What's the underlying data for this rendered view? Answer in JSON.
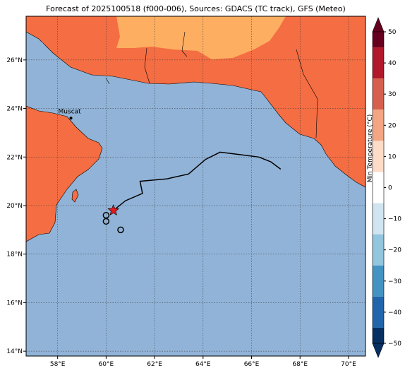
{
  "title": "Forecast of 2025100518 (f000-006), Sources: GDACS (TC track), GFS (Meteo)",
  "map": {
    "lon_range": [
      56.7,
      70.7
    ],
    "lat_range": [
      13.8,
      27.8
    ],
    "lon_ticks": [
      "58°E",
      "60°E",
      "62°E",
      "64°E",
      "66°E",
      "68°E",
      "70°E"
    ],
    "lat_ticks": [
      "14°N",
      "16°N",
      "18°N",
      "20°N",
      "22°N",
      "24°N",
      "26°N"
    ],
    "city": {
      "name": "Muscat",
      "lon": 58.55,
      "lat": 23.6
    },
    "ocean_color": "#91b3d7",
    "land_color_warm": "#f46d43",
    "land_color_hot": "#fdae61"
  },
  "track": {
    "points": [
      [
        67.2,
        21.5
      ],
      [
        66.8,
        21.8
      ],
      [
        66.3,
        22.0
      ],
      [
        65.5,
        22.1
      ],
      [
        64.7,
        22.2
      ],
      [
        64.1,
        21.9
      ],
      [
        63.4,
        21.3
      ],
      [
        62.5,
        21.1
      ],
      [
        61.4,
        21.0
      ],
      [
        61.5,
        20.5
      ],
      [
        60.8,
        20.2
      ],
      [
        60.3,
        19.8
      ]
    ],
    "current_position": {
      "lon": 60.3,
      "lat": 19.8
    },
    "loops": [
      [
        60.0,
        19.6
      ],
      [
        60.0,
        19.35
      ],
      [
        60.6,
        19.0
      ]
    ]
  },
  "colorbar": {
    "label": "Min Temperature (°C)",
    "ticks": [
      "50",
      "40",
      "30",
      "20",
      "10",
      "0",
      "−10",
      "−20",
      "−30",
      "−40",
      "−50"
    ],
    "colors": [
      "#67001f",
      "#b2182b",
      "#d6604d",
      "#f4a582",
      "#fddbc7",
      "#ffffff",
      "#d1e5f0",
      "#92c5de",
      "#4393c3",
      "#2166ac",
      "#053061"
    ]
  }
}
